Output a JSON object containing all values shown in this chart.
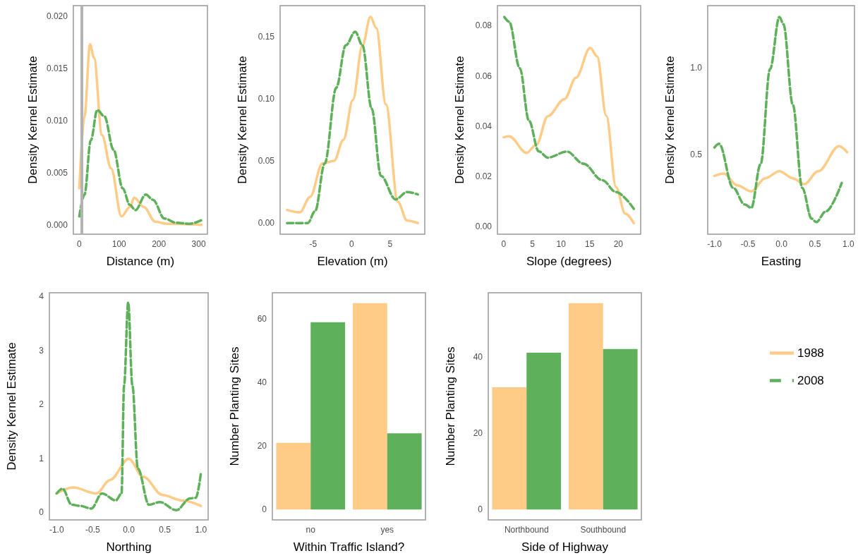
{
  "chart_data": [
    {
      "type": "line",
      "xlabel": "Distance (m)",
      "ylabel": "Density Kernel Estimate",
      "marker": "none",
      "grid": false,
      "xlim": [
        -15,
        322
      ],
      "ylim": [
        -0.0009,
        0.021
      ],
      "xticks": [
        0,
        100,
        200,
        300
      ],
      "yticks": [
        {
          "value": 0,
          "label": "0.000"
        },
        {
          "value": 0.005,
          "label": "0.005"
        },
        {
          "value": 0.01,
          "label": "0.010"
        },
        {
          "value": 0.015,
          "label": "0.015"
        },
        {
          "value": 0.02,
          "label": "0.020"
        }
      ],
      "ref_lines": [
        {
          "axis": "x",
          "value": 6,
          "color": "#b3b3b3"
        }
      ],
      "series": [
        {
          "color": "#ffcc88",
          "line_style": "solid",
          "x": [
            0,
            13,
            27,
            37,
            57,
            80,
            106,
            127,
            138,
            162,
            191,
            220,
            307
          ],
          "values": [
            0.0035,
            0.0104,
            0.0173,
            0.016,
            0.0086,
            0.0054,
            0.0008,
            0.0017,
            0.0026,
            0.0017,
            0.0003,
            0.0001,
            0
          ]
        },
        {
          "color": "#5fb05a",
          "line_style": "dashed",
          "x": [
            0,
            13,
            29,
            45,
            63,
            86,
            109,
            127,
            141,
            167,
            185,
            214,
            243,
            278,
            310
          ],
          "values": [
            0.0008,
            0.0029,
            0.0081,
            0.011,
            0.0104,
            0.0072,
            0.0035,
            0.0019,
            0.0014,
            0.0029,
            0.0024,
            0.0006,
            0.0002,
            0.0001,
            0.0005
          ]
        }
      ]
    },
    {
      "type": "line",
      "xlabel": "Elevation (m)",
      "ylabel": "Density Kernel Estimate",
      "marker": "none",
      "grid": false,
      "xlim": [
        -9.3,
        9.5
      ],
      "ylim": [
        -0.009,
        0.175
      ],
      "xticks": [
        -5,
        0,
        5
      ],
      "yticks": [
        {
          "value": 0,
          "label": "0.00"
        },
        0.05,
        {
          "value": 0.1,
          "label": "0.10"
        },
        0.15
      ],
      "series": [
        {
          "color": "#ffcc88",
          "line_style": "solid",
          "x": [
            -8.4,
            -6.75,
            -5.4,
            -3.8,
            -2.3,
            -1.07,
            0.15,
            1.4,
            2.45,
            3.2,
            4.45,
            6.0,
            7.2,
            8.6
          ],
          "values": [
            0.0105,
            0.0086,
            0.021,
            0.048,
            0.05,
            0.067,
            0.099,
            0.143,
            0.166,
            0.157,
            0.0955,
            0.017,
            0.002,
            0
          ]
        },
        {
          "color": "#5fb05a",
          "line_style": "dashed",
          "x": [
            -8.4,
            -5.7,
            -4.75,
            -3.5,
            -2.0,
            -0.77,
            0.46,
            1.4,
            2.6,
            3.8,
            5.7,
            7.2,
            8.6
          ],
          "values": [
            0,
            0,
            0.0096,
            0.048,
            0.109,
            0.143,
            0.154,
            0.143,
            0.092,
            0.038,
            0.019,
            0.025,
            0.023
          ]
        }
      ]
    },
    {
      "type": "line",
      "xlabel": "Slope (degrees)",
      "ylabel": "Density Kernel Estimate",
      "marker": "none",
      "grid": false,
      "xlim": [
        -1.1,
        23.9
      ],
      "ylim": [
        -0.003,
        0.088
      ],
      "xticks": [
        0,
        5,
        10,
        15,
        20
      ],
      "yticks": [
        {
          "value": 0,
          "label": "0.00"
        },
        0.02,
        0.04,
        0.06,
        0.08
      ],
      "series": [
        {
          "color": "#ffcc88",
          "line_style": "solid",
          "x": [
            0,
            0.94,
            4.0,
            5.7,
            7.7,
            10.6,
            12.6,
            15.1,
            16.3,
            17.9,
            19.6,
            21.2,
            22.7
          ],
          "values": [
            0.0356,
            0.036,
            0.0294,
            0.0327,
            0.044,
            0.0508,
            0.0593,
            0.0712,
            0.0678,
            0.0441,
            0.0157,
            0.0052,
            0.0014
          ]
        },
        {
          "color": "#5fb05a",
          "line_style": "dashed",
          "x": [
            0.1,
            0.94,
            2.8,
            4.4,
            6.1,
            7.7,
            11,
            13.9,
            17.2,
            19.6,
            22.7
          ],
          "values": [
            0.0835,
            0.0816,
            0.0631,
            0.0422,
            0.03,
            0.0275,
            0.0299,
            0.0251,
            0.0185,
            0.0138,
            0.0071
          ]
        }
      ]
    },
    {
      "type": "line",
      "xlabel": "Easting",
      "ylabel": "Density Kernel Estimate",
      "marker": "none",
      "grid": false,
      "xlim": [
        -1.1,
        1.09
      ],
      "ylim": [
        0.04,
        1.36
      ],
      "xticks": [
        {
          "value": -1,
          "label": "-1.0"
        },
        -0.5,
        {
          "value": 0,
          "label": "0.0"
        },
        0.5,
        {
          "value": 1,
          "label": "1.0"
        }
      ],
      "yticks": [
        0.5,
        {
          "value": 1,
          "label": "1.0"
        }
      ],
      "series": [
        {
          "color": "#ffcc88",
          "line_style": "solid",
          "x": [
            -1.0,
            -0.86,
            -0.66,
            -0.45,
            -0.24,
            -0.03,
            0.17,
            0.34,
            0.55,
            0.86,
            0.98
          ],
          "values": [
            0.377,
            0.39,
            0.322,
            0.288,
            0.363,
            0.404,
            0.363,
            0.329,
            0.404,
            0.548,
            0.514
          ]
        },
        {
          "color": "#5fb05a",
          "line_style": "dashed",
          "x": [
            -1.0,
            -0.93,
            -0.72,
            -0.55,
            -0.45,
            -0.31,
            -0.17,
            -0.03,
            0.03,
            0.17,
            0.31,
            0.45,
            0.52,
            0.66,
            0.9
          ],
          "values": [
            0.541,
            0.562,
            0.308,
            0.212,
            0.192,
            0.445,
            0.993,
            1.295,
            1.253,
            0.788,
            0.308,
            0.13,
            0.11,
            0.171,
            0.336
          ]
        }
      ]
    },
    {
      "type": "line",
      "xlabel": "Northing",
      "ylabel": "Density Kernel Estimate",
      "marker": "none",
      "grid": false,
      "xlim": [
        -1.1,
        1.1
      ],
      "ylim": [
        -0.14,
        4.07
      ],
      "xticks": [
        {
          "value": -1,
          "label": "-1.0"
        },
        -0.5,
        {
          "value": 0,
          "label": "0.0"
        },
        0.5,
        {
          "value": 1,
          "label": "1.0"
        }
      ],
      "yticks": [
        0,
        1,
        2,
        3,
        4
      ],
      "series": [
        {
          "color": "#ffcc88",
          "line_style": "solid",
          "x": [
            -1,
            -0.77,
            -0.45,
            -0.26,
            0,
            0.2,
            0.47,
            0.74,
            1.0
          ],
          "values": [
            0.35,
            0.46,
            0.35,
            0.6,
            0.99,
            0.66,
            0.32,
            0.22,
            0.12
          ]
        },
        {
          "color": "#5fb05a",
          "line_style": "dashed",
          "x": [
            -1,
            -0.92,
            -0.79,
            -0.67,
            -0.52,
            -0.37,
            -0.18,
            -0.1,
            -0.065,
            -0.008,
            0.05,
            0.126,
            0.28,
            0.43,
            0.66,
            0.85,
            0.93,
            1.0
          ],
          "values": [
            0.35,
            0.44,
            0.14,
            0.12,
            0.07,
            0.35,
            0.22,
            0.35,
            2.35,
            3.89,
            2.35,
            0.81,
            0.14,
            0.19,
            0.04,
            0.26,
            0.27,
            0.73
          ]
        }
      ]
    },
    {
      "type": "bar",
      "xlabel": "Within Traffic Island?",
      "ylabel": "Number Planting Sites",
      "grid": false,
      "categories": [
        "no",
        "yes"
      ],
      "ylim": [
        -3.25,
        68.25
      ],
      "yticks": [
        0,
        20,
        40,
        60
      ],
      "series": [
        {
          "color": "#ffcc88",
          "values": [
            21,
            65
          ]
        },
        {
          "color": "#5fb05a",
          "values": [
            59,
            24
          ]
        }
      ]
    },
    {
      "type": "bar",
      "xlabel": "Side of Highway",
      "ylabel": "Number Planting Sites",
      "grid": false,
      "legend": "right",
      "categories": [
        "Northbound",
        "Southbound"
      ],
      "ylim": [
        -2.7,
        56.7
      ],
      "yticks": [
        0,
        20,
        40
      ],
      "series": [
        {
          "name": "1988",
          "color": "#ffcc88",
          "line_style": "solid",
          "values": [
            32,
            54
          ]
        },
        {
          "name": "2008",
          "color": "#5fb05a",
          "line_style": "dashed",
          "values": [
            41,
            42
          ]
        }
      ]
    }
  ]
}
